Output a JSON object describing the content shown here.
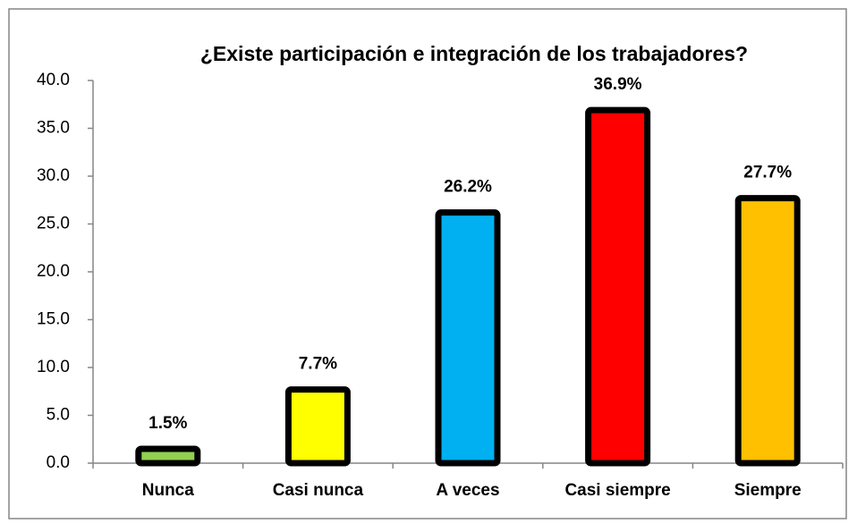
{
  "chart_data": {
    "type": "bar",
    "title": "¿Existe participación e integración de los trabajadores?",
    "categories": [
      "Nunca",
      "Casi nunca",
      "A veces",
      "Casi siempre",
      "Siempre"
    ],
    "values": [
      1.5,
      7.7,
      26.2,
      36.9,
      27.7
    ],
    "value_labels": [
      "1.5%",
      "7.7%",
      "26.2%",
      "36.9%",
      "27.7%"
    ],
    "colors": [
      "#92d050",
      "#ffff00",
      "#00b0f0",
      "#ff0000",
      "#ffc000"
    ],
    "ylim": [
      0,
      40
    ],
    "yticks": [
      {
        "value": 0,
        "label": "0.0"
      },
      {
        "value": 5,
        "label": "5.0"
      },
      {
        "value": 10,
        "label": "10.0"
      },
      {
        "value": 15,
        "label": "15.0"
      },
      {
        "value": 20,
        "label": "20.0"
      },
      {
        "value": 25,
        "label": "25.0"
      },
      {
        "value": 30,
        "label": "30.0"
      },
      {
        "value": 35,
        "label": "35.0"
      },
      {
        "value": 40,
        "label": "40.0"
      }
    ],
    "grid": false
  }
}
